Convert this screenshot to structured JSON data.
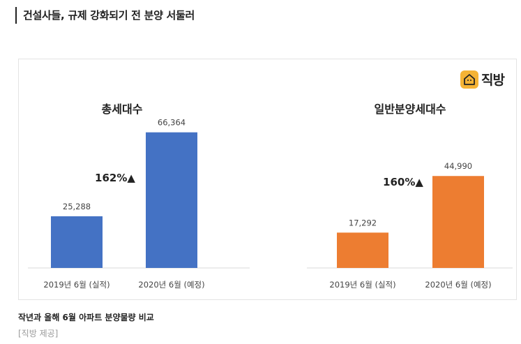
{
  "article": {
    "headline": "건설사들, 규제 강화되기 전 분양 서둘러",
    "caption": "작년과 올해 6월 아파트 분양물량 비교",
    "credit": "[직방 제공]"
  },
  "logo": {
    "text": "직방",
    "icon": "house-icon",
    "color": "#f5b335"
  },
  "chart_data": [
    {
      "type": "bar",
      "title": "총세대수",
      "categories": [
        "2019년 6월 (실적)",
        "2020년 6월 (예정)"
      ],
      "values": [
        25288,
        66364
      ],
      "value_labels": [
        "25,288",
        "66,364"
      ],
      "change_label": "162%▲",
      "color": "#4472c4",
      "ylim": [
        0,
        70000
      ]
    },
    {
      "type": "bar",
      "title": "일반분양세대수",
      "categories": [
        "2019년 6월 (실적)",
        "2020년 6월 (예정)"
      ],
      "values": [
        17292,
        44990
      ],
      "value_labels": [
        "17,292",
        "44,990"
      ],
      "change_label": "160%▲",
      "color": "#ed7d31",
      "ylim": [
        0,
        70000
      ]
    }
  ]
}
